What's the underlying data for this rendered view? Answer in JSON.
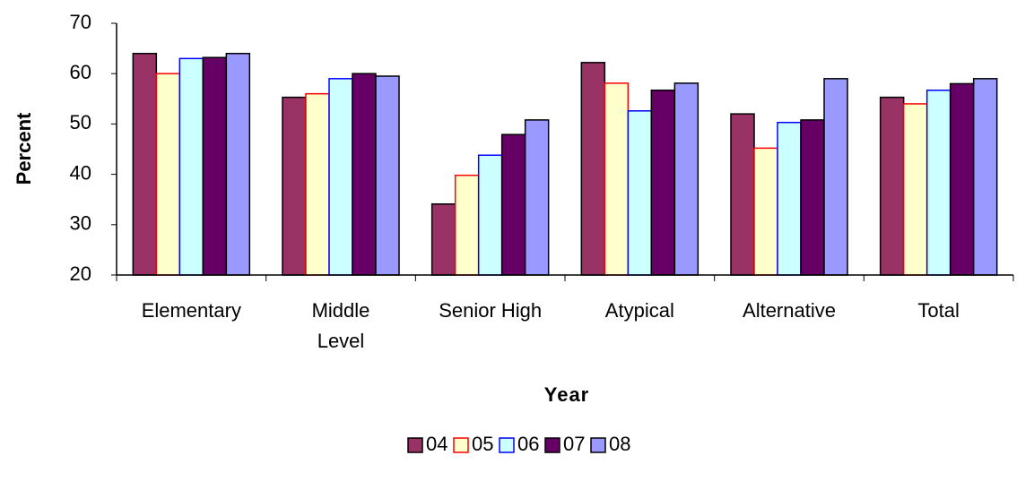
{
  "chart_data": {
    "type": "bar",
    "y_label": "Percent",
    "x_label": "Year",
    "categories": [
      "Elementary",
      "Middle\nLevel",
      "Senior High",
      "Atypical",
      "Alternative",
      "Total"
    ],
    "series": [
      {
        "name": "04",
        "color": "#993366",
        "edge": "#000000",
        "values": [
          64,
          55.3,
          34.1,
          62.2,
          52,
          55.3
        ]
      },
      {
        "name": "05",
        "color": "#FFFFCC",
        "edge": "#FF0000",
        "values": [
          60,
          56,
          39.8,
          58.1,
          45.2,
          54
        ]
      },
      {
        "name": "06",
        "color": "#CCFFFF",
        "edge": "#0000FF",
        "values": [
          63,
          59,
          43.8,
          52.6,
          50.3,
          56.7
        ]
      },
      {
        "name": "07",
        "color": "#660066",
        "edge": "#000000",
        "values": [
          63.2,
          60,
          47.9,
          56.7,
          50.8,
          58
        ]
      },
      {
        "name": "08",
        "color": "#9999FF",
        "edge": "#000000",
        "values": [
          64,
          59.5,
          50.8,
          58.1,
          59,
          59
        ]
      }
    ],
    "ylim": [
      20,
      70
    ],
    "yticks": [
      20,
      30,
      40,
      50,
      60,
      70
    ],
    "grid": false,
    "legend": "bottom"
  }
}
